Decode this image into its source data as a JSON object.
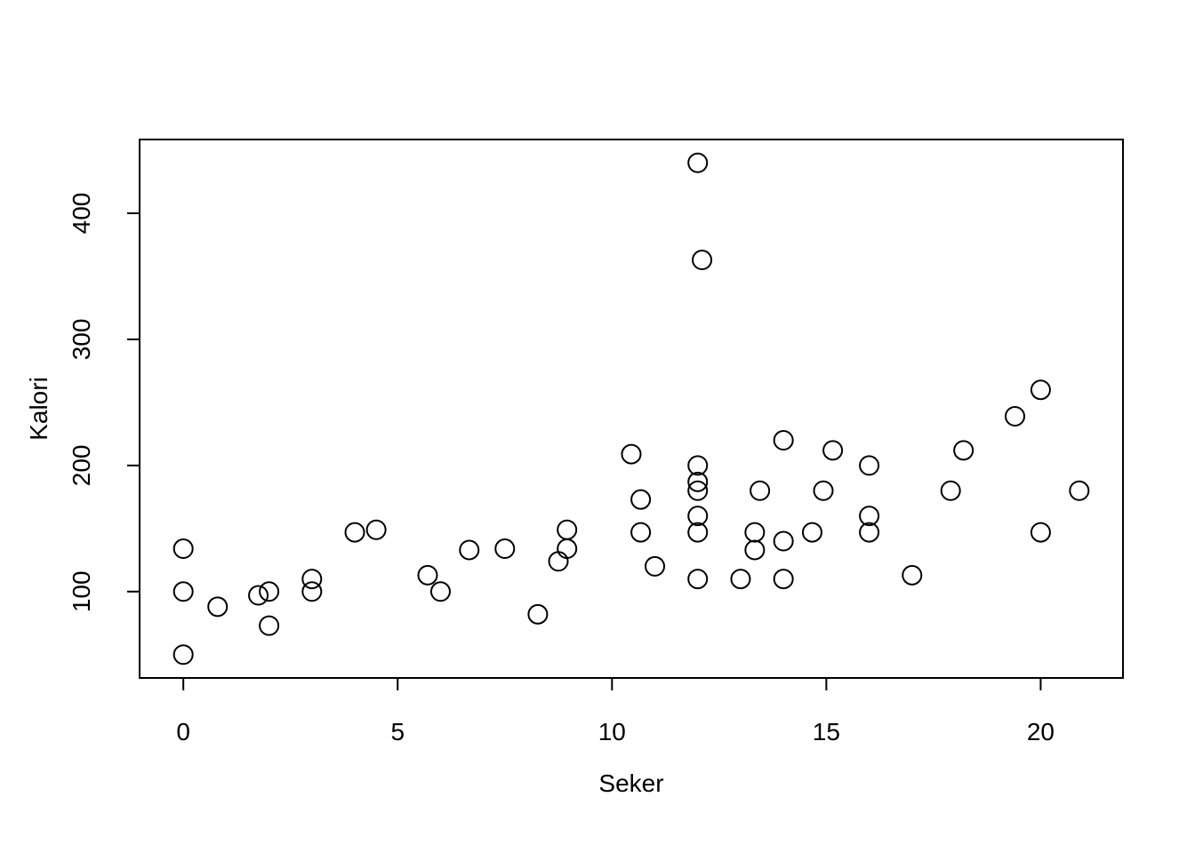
{
  "chart_data": {
    "type": "scatter",
    "title": "",
    "xlabel": "Seker",
    "ylabel": "Kalori",
    "xlim": [
      -1.02,
      21.92
    ],
    "ylim": [
      31.5,
      458.5
    ],
    "xticks": [
      0,
      5,
      10,
      15,
      20
    ],
    "yticks": [
      100,
      200,
      300,
      400
    ],
    "grid": false,
    "legend": "none",
    "marker": "open-circle",
    "points": [
      {
        "x": 0,
        "y": 134
      },
      {
        "x": 0,
        "y": 100
      },
      {
        "x": 0,
        "y": 50
      },
      {
        "x": 0.8,
        "y": 88
      },
      {
        "x": 1.75,
        "y": 97
      },
      {
        "x": 2,
        "y": 100
      },
      {
        "x": 2,
        "y": 73
      },
      {
        "x": 3,
        "y": 110
      },
      {
        "x": 3,
        "y": 100
      },
      {
        "x": 4,
        "y": 147
      },
      {
        "x": 4.5,
        "y": 149
      },
      {
        "x": 5.7,
        "y": 113
      },
      {
        "x": 6,
        "y": 100
      },
      {
        "x": 6.67,
        "y": 133
      },
      {
        "x": 7.5,
        "y": 134
      },
      {
        "x": 8.27,
        "y": 82
      },
      {
        "x": 8.75,
        "y": 124
      },
      {
        "x": 8.95,
        "y": 149
      },
      {
        "x": 8.95,
        "y": 134
      },
      {
        "x": 10.45,
        "y": 209
      },
      {
        "x": 10.67,
        "y": 173
      },
      {
        "x": 10.67,
        "y": 147
      },
      {
        "x": 11,
        "y": 120
      },
      {
        "x": 12,
        "y": 440
      },
      {
        "x": 12.1,
        "y": 363
      },
      {
        "x": 12,
        "y": 200
      },
      {
        "x": 12,
        "y": 187
      },
      {
        "x": 12,
        "y": 180
      },
      {
        "x": 12,
        "y": 160
      },
      {
        "x": 12,
        "y": 147
      },
      {
        "x": 12,
        "y": 110
      },
      {
        "x": 13,
        "y": 110
      },
      {
        "x": 13.33,
        "y": 147
      },
      {
        "x": 13.33,
        "y": 133
      },
      {
        "x": 13.45,
        "y": 180
      },
      {
        "x": 14,
        "y": 220
      },
      {
        "x": 14,
        "y": 140
      },
      {
        "x": 14,
        "y": 110
      },
      {
        "x": 14.67,
        "y": 147
      },
      {
        "x": 14.93,
        "y": 180
      },
      {
        "x": 15.15,
        "y": 212
      },
      {
        "x": 16,
        "y": 200
      },
      {
        "x": 16,
        "y": 160
      },
      {
        "x": 16,
        "y": 147
      },
      {
        "x": 17,
        "y": 113
      },
      {
        "x": 17.9,
        "y": 180
      },
      {
        "x": 18.2,
        "y": 212
      },
      {
        "x": 19.4,
        "y": 239
      },
      {
        "x": 20,
        "y": 260
      },
      {
        "x": 20,
        "y": 147
      },
      {
        "x": 20.9,
        "y": 180
      }
    ]
  }
}
